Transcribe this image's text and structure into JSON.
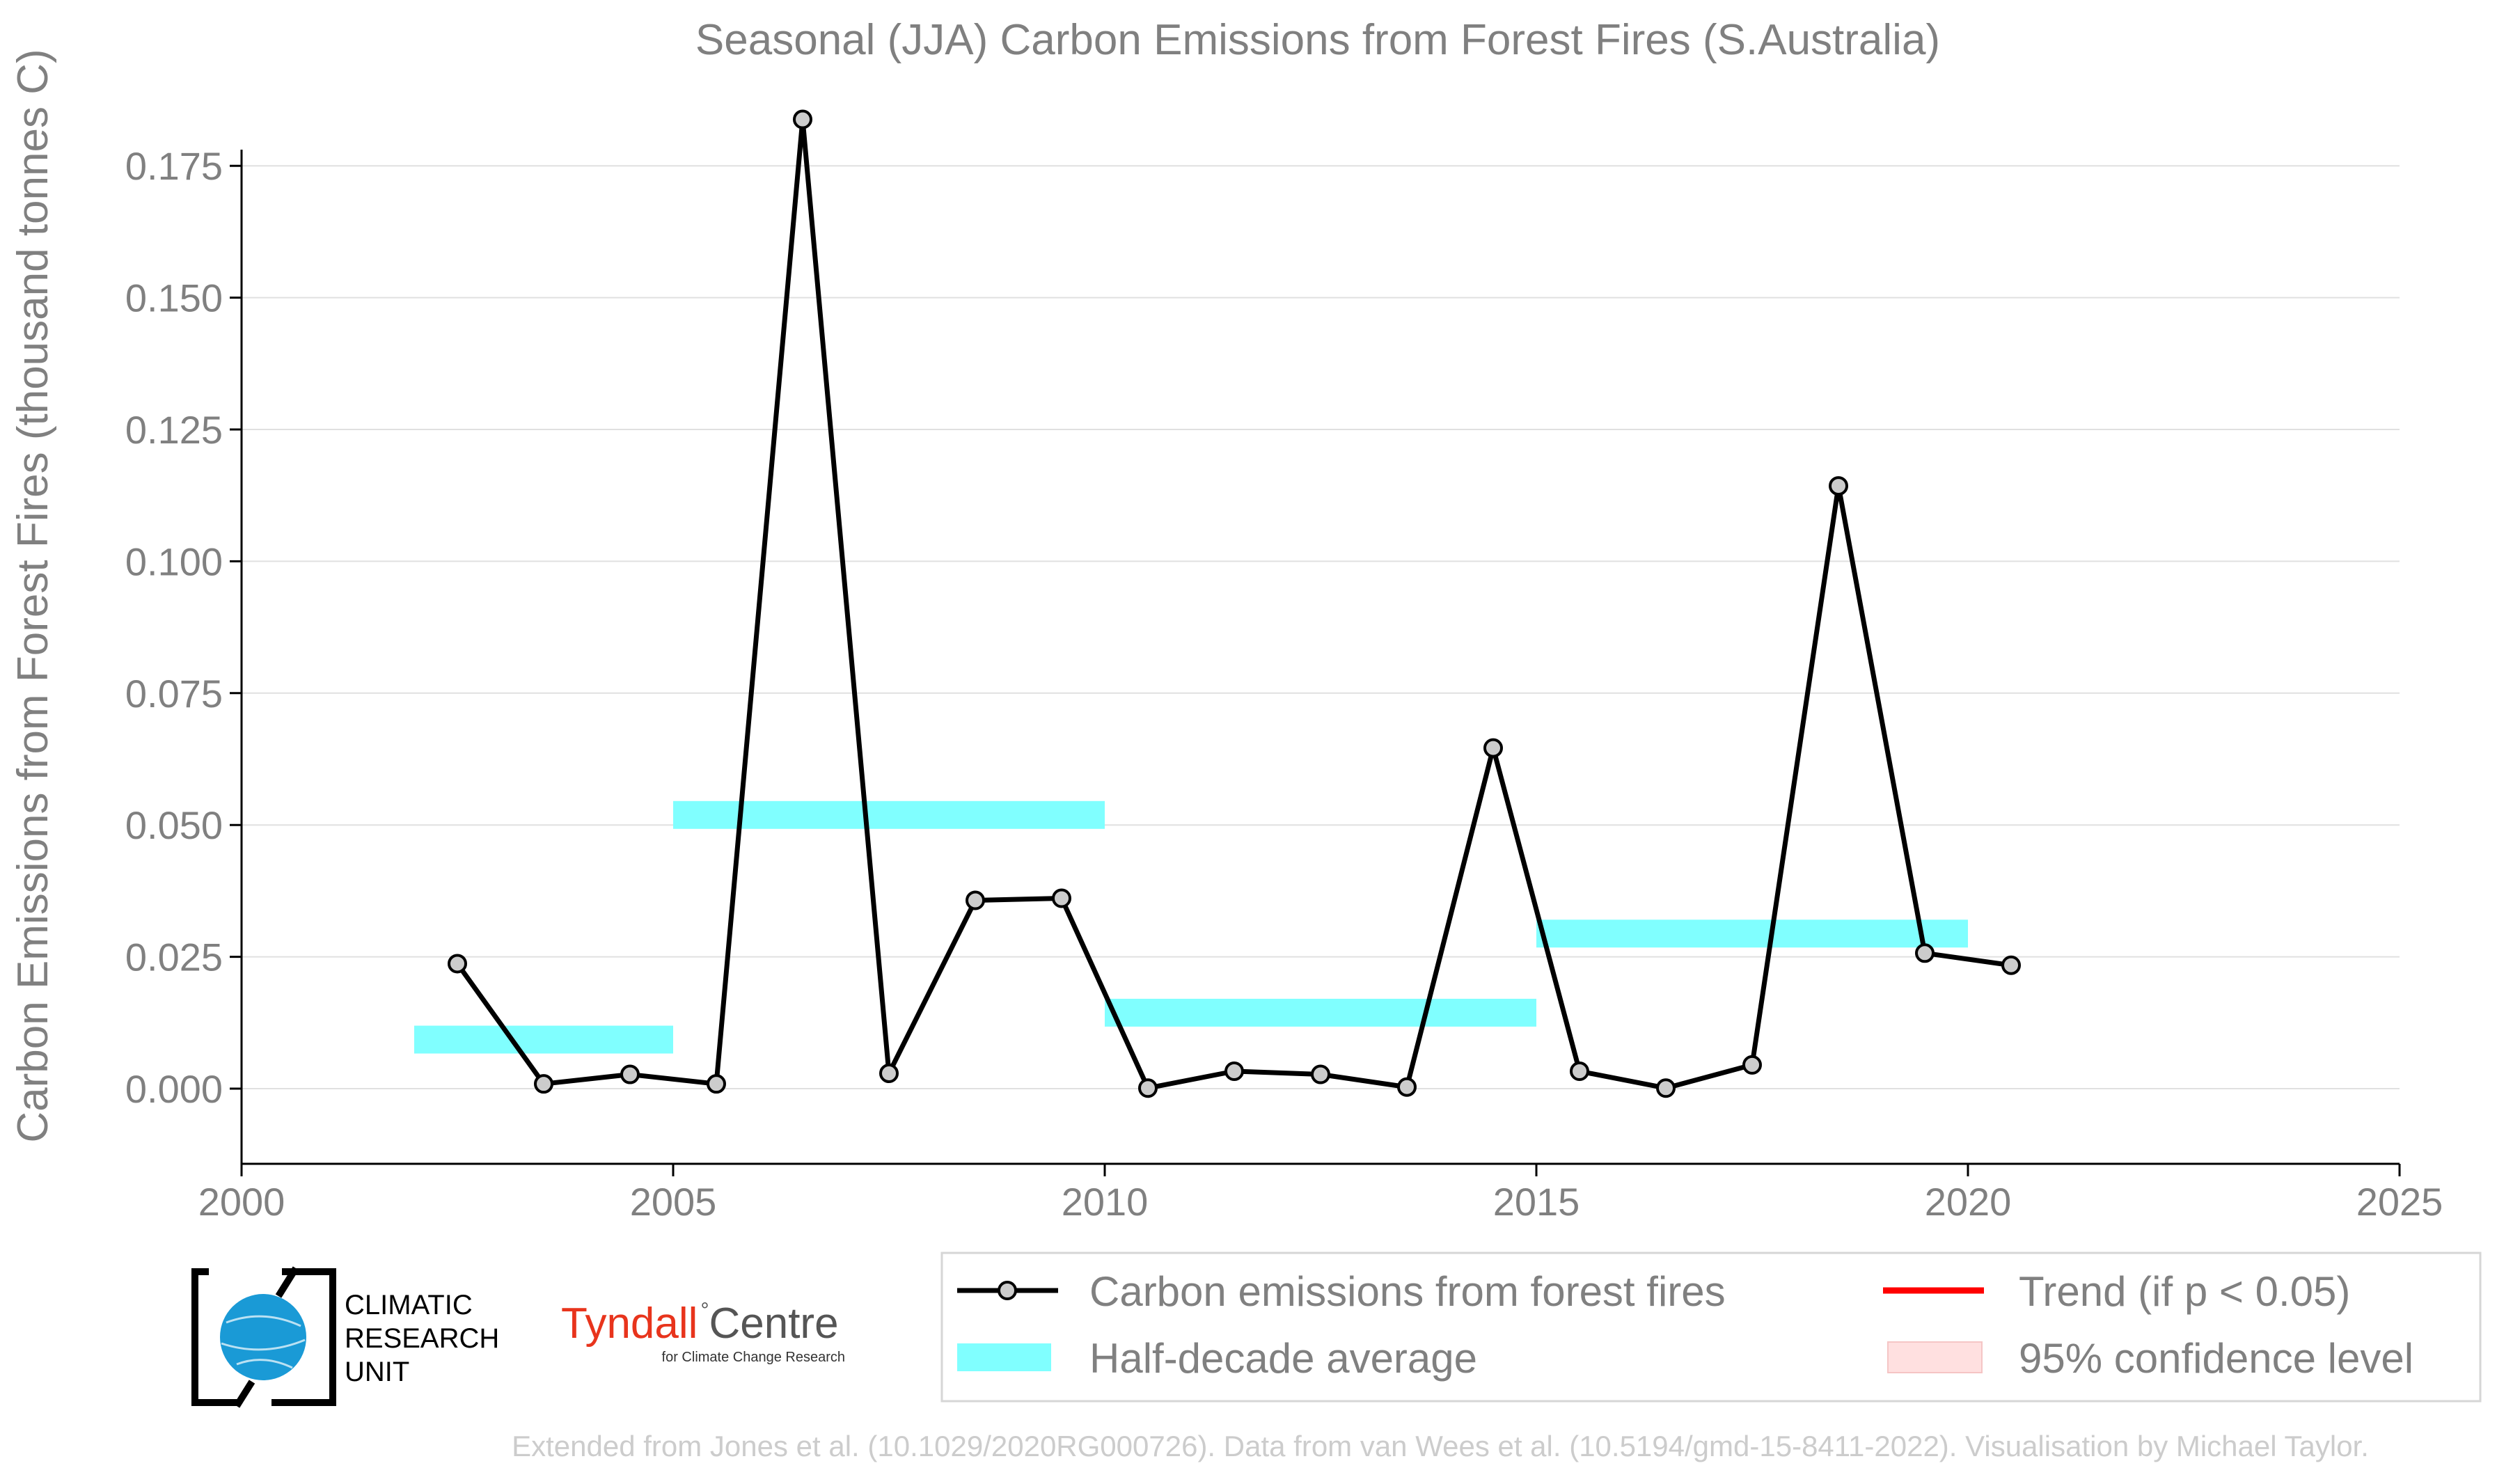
{
  "chart_data": {
    "type": "line",
    "title": "Seasonal (JJA) Carbon Emissions from Forest Fires (S.Australia)",
    "ylabel": "Carbon Emissions from Forest Fires (thousand tonnes C)",
    "xlabel": "",
    "xlim": [
      2000,
      2025
    ],
    "ylim": [
      -0.015,
      0.185
    ],
    "x_ticks": [
      "2000",
      "2005",
      "2010",
      "2015",
      "2020",
      "2025"
    ],
    "y_ticks": [
      "0.000",
      "0.025",
      "0.050",
      "0.075",
      "0.100",
      "0.125",
      "0.150",
      "0.175"
    ],
    "grid": "horizontal",
    "series": [
      {
        "name": "Carbon emissions from forest fires",
        "color": "#000000",
        "marker_fill": "#cccccc",
        "x": [
          2002.5,
          2003.5,
          2004.5,
          2005.5,
          2006.5,
          2007.5,
          2008.5,
          2009.5,
          2010.5,
          2011.5,
          2012.5,
          2013.5,
          2014.5,
          2015.5,
          2016.5,
          2017.5,
          2018.5,
          2019.5,
          2020.5
        ],
        "values": [
          0.0237,
          0.0009,
          0.0027,
          0.0009,
          0.1838,
          0.0029,
          0.0357,
          0.0361,
          0.0001,
          0.0033,
          0.0027,
          0.0003,
          0.0646,
          0.0033,
          0.0001,
          0.0045,
          0.1143,
          0.0257,
          0.0234
        ]
      }
    ],
    "half_decade_average": {
      "name": "Half-decade average",
      "color": "#80ffff",
      "segments": [
        {
          "x0": 2002,
          "x1": 2005,
          "value": 0.0093
        },
        {
          "x0": 2005,
          "x1": 2010,
          "value": 0.0519
        },
        {
          "x0": 2010,
          "x1": 2015,
          "value": 0.0144
        },
        {
          "x0": 2015,
          "x1": 2020,
          "value": 0.0294
        }
      ]
    },
    "legend": {
      "placement": "bottom-right",
      "items": [
        {
          "label": "Carbon emissions from forest fires",
          "kind": "line-marker",
          "color": "#000000"
        },
        {
          "label": "Trend (if p < 0.05)",
          "kind": "line",
          "color": "#ff0000"
        },
        {
          "label": "Half-decade average",
          "kind": "band",
          "color": "#80ffff"
        },
        {
          "label": "95% confidence level",
          "kind": "fill",
          "color": "#ffe0e0"
        }
      ]
    }
  },
  "logos": {
    "cru": [
      "CLIMATIC",
      "RESEARCH",
      "UNIT"
    ],
    "cru_color": "#1a9ad6",
    "tyndall_red": "Tyndall",
    "tyndall_grey": "Centre",
    "tyndall_sub": "for Climate Change Research",
    "tyndall_color": "#e8341c"
  },
  "footer": "Extended from Jones et al. (10.1029/2020RG000726). Data from van Wees et al. (10.5194/gmd-15-8411-2022). Visualisation by Michael Taylor."
}
